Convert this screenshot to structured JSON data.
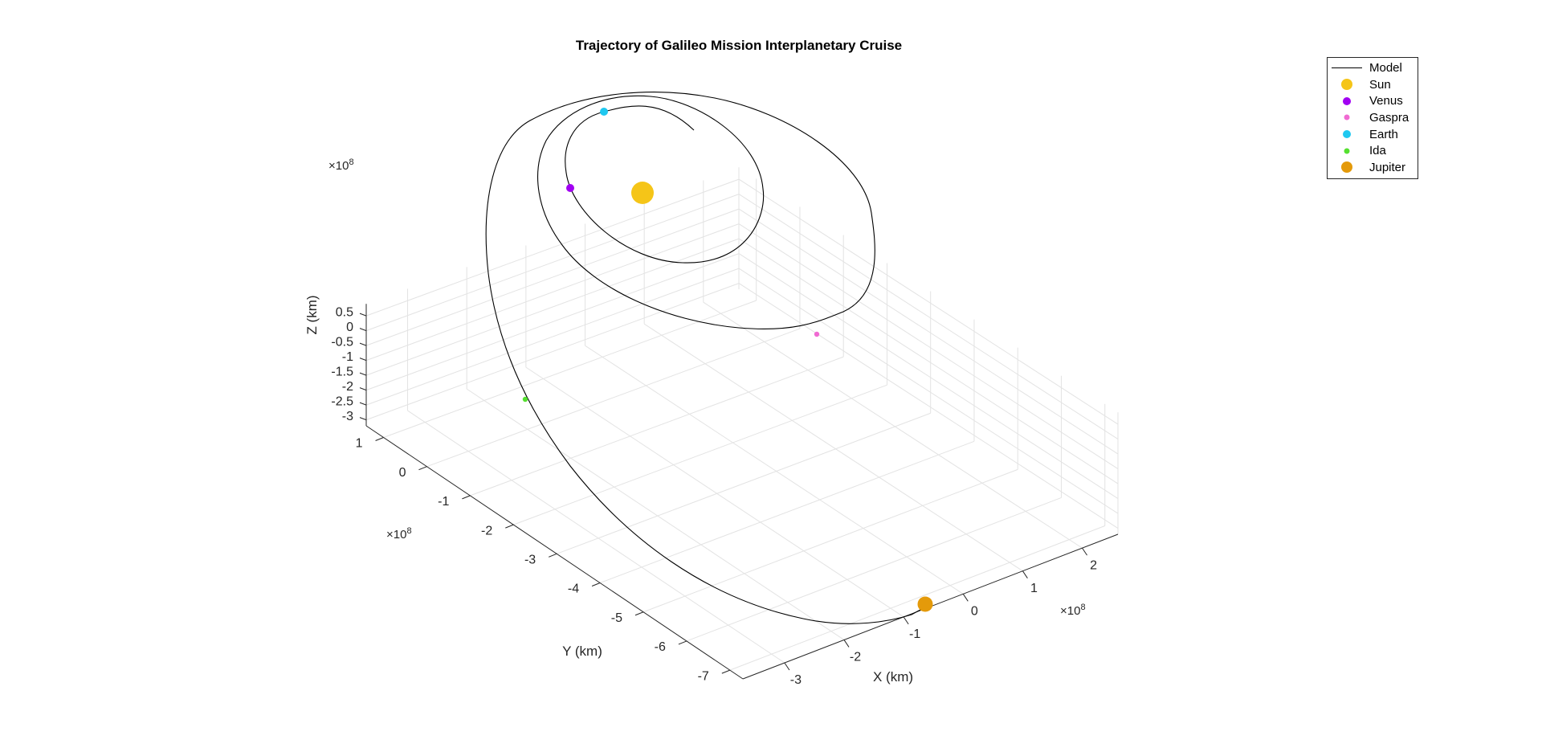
{
  "window": {
    "title": "Trajectory of Galileo Mission Interplanetary Cruise"
  },
  "chart_data": {
    "type": "scatter3d",
    "title": "Trajectory of Galileo Mission Interplanetary Cruise",
    "xlabel": "X (km)",
    "ylabel": "Y (km)",
    "zlabel": "Z (km)",
    "x_exponent": "×10",
    "y_exponent": "×10",
    "z_exponent": "×10",
    "exponent_power": "8",
    "x_ticks": [
      "-3",
      "-2",
      "-1",
      "0",
      "1",
      "2"
    ],
    "y_ticks": [
      "1",
      "0",
      "-1",
      "-2",
      "-3",
      "-4",
      "-5",
      "-6",
      "-7"
    ],
    "z_ticks": [
      "0.5",
      "0",
      "-0.5",
      "-1",
      "-1.5",
      "-2",
      "-2.5",
      "-3"
    ],
    "x_tick_values": [
      -3,
      -2,
      -1,
      0,
      1,
      2
    ],
    "y_tick_values": [
      1,
      0,
      -1,
      -2,
      -3,
      -4,
      -5,
      -6,
      -7
    ],
    "z_tick_values": [
      0.5,
      0,
      -0.5,
      -1,
      -1.5,
      -2,
      -2.5,
      -3
    ],
    "xlim": [
      -3.7,
      2.6
    ],
    "ylim": [
      -7.3,
      1.4
    ],
    "zlim": [
      -3.2,
      0.9
    ],
    "grid": true,
    "legend_position": "top-right",
    "series": [
      {
        "name": "Model",
        "kind": "line",
        "color": "#000000"
      },
      {
        "name": "Sun",
        "kind": "point",
        "color": "#f5c518",
        "x": 0.0,
        "y": 0.0,
        "z": 0.0
      },
      {
        "name": "Venus",
        "kind": "point",
        "color": "#a100f2",
        "x": -0.8,
        "y": -0.6,
        "z": 0.05
      },
      {
        "name": "Gaspra",
        "kind": "point",
        "color": "#f06ad2",
        "x": 1.4,
        "y": -2.0,
        "z": 0.05
      },
      {
        "name": "Earth",
        "kind": "point",
        "color": "#1fc8f0",
        "x": 0.3,
        "y": 1.3,
        "z": 0.05
      },
      {
        "name": "Ida",
        "kind": "point",
        "color": "#55e030",
        "x": -2.3,
        "y": -3.9,
        "z": 0.1
      },
      {
        "name": "Jupiter",
        "kind": "point",
        "color": "#e49a0a",
        "x": 0.4,
        "y": -6.8,
        "z": -3.0
      }
    ]
  },
  "legend": {
    "items": [
      {
        "label": "Model",
        "color": "#000000",
        "kind": "line"
      },
      {
        "label": "Sun",
        "color": "#f5c518",
        "kind": "dot",
        "size": 14
      },
      {
        "label": "Venus",
        "color": "#a100f2",
        "kind": "dot",
        "size": 10
      },
      {
        "label": "Gaspra",
        "color": "#f06ad2",
        "kind": "dot",
        "size": 7
      },
      {
        "label": "Earth",
        "color": "#1fc8f0",
        "kind": "dot",
        "size": 10
      },
      {
        "label": "Ida",
        "color": "#55e030",
        "kind": "dot",
        "size": 7
      },
      {
        "label": "Jupiter",
        "color": "#e49a0a",
        "kind": "dot",
        "size": 14
      }
    ]
  }
}
